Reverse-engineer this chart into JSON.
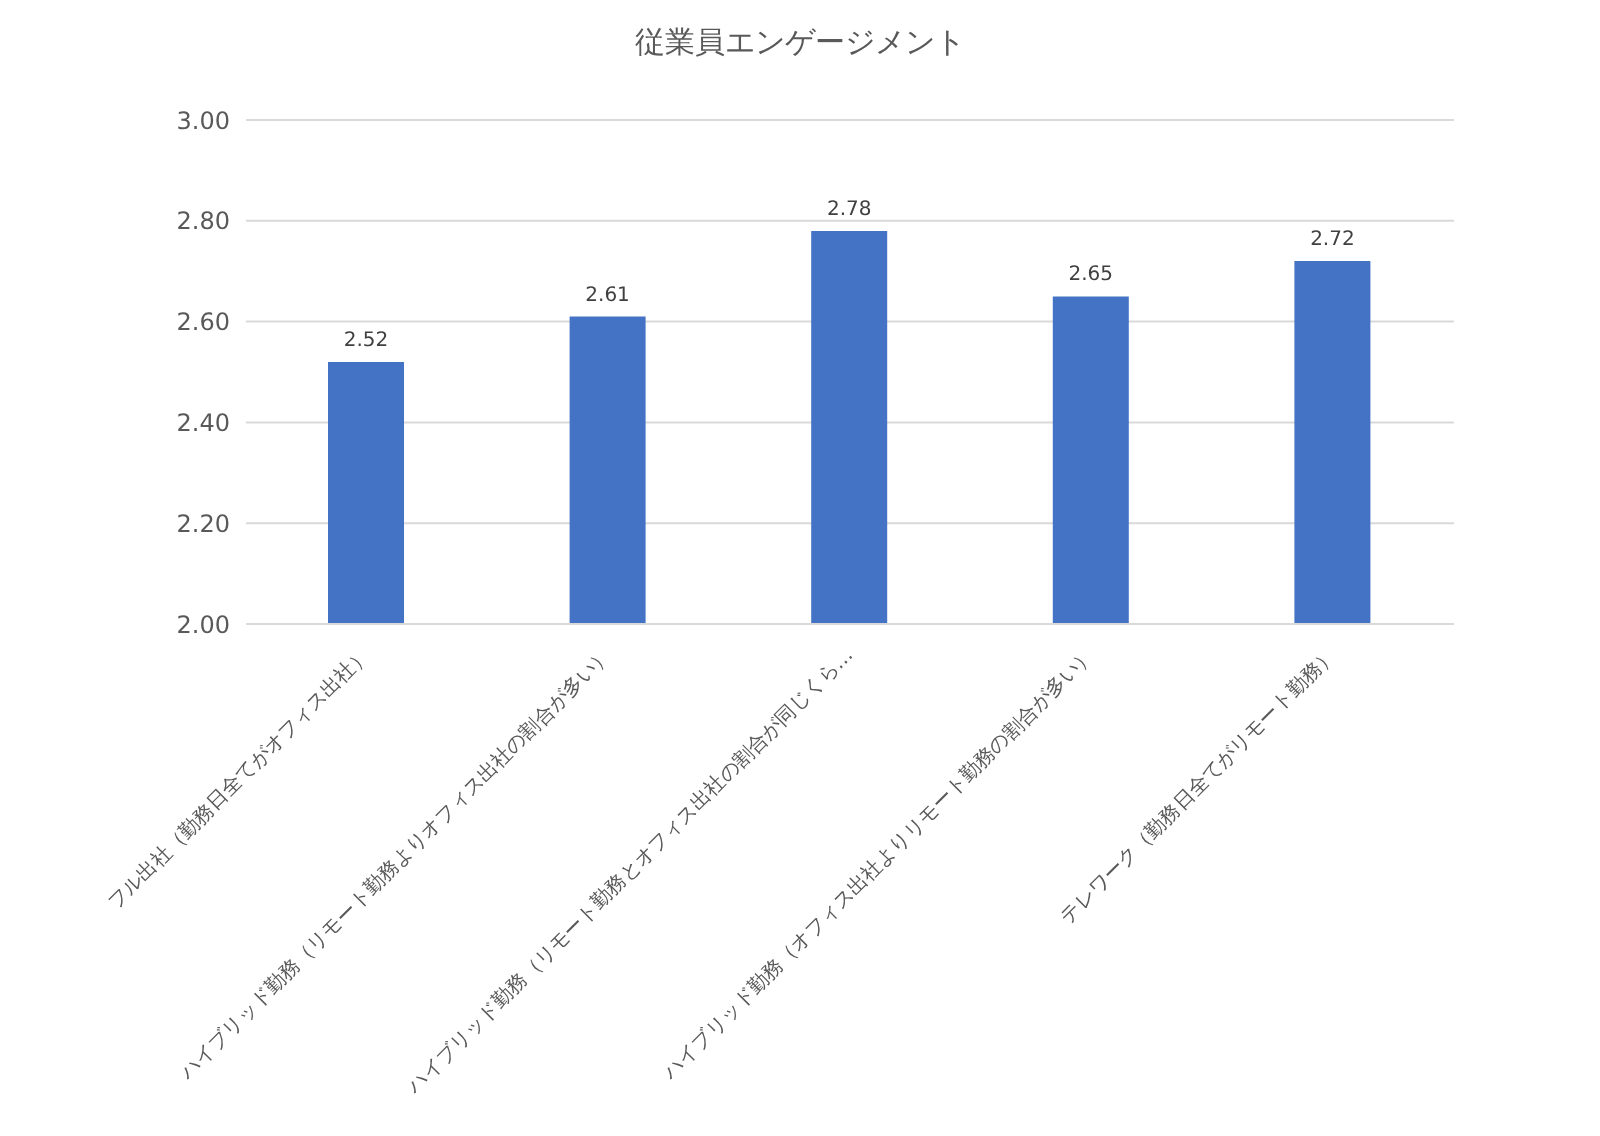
{
  "chart_data": {
    "type": "bar",
    "title": "従業員エンゲージメント",
    "categories": [
      "フル出社（勤務日全てがオフィス出社）",
      "ハイブリッド勤務（リモート勤務よりオフィス出社の割合が多い）",
      "ハイブリッド勤務（リモート勤務とオフィス出社の割合が同じくら…",
      "ハイブリッド勤務（オフィス出社よりリモート勤務の割合が多い）",
      "テレワーク（勤務日全てがリモート勤務）"
    ],
    "values": [
      2.52,
      2.61,
      2.78,
      2.65,
      2.72
    ],
    "color": "#4472c4",
    "ylim": [
      2.0,
      3.0
    ],
    "yticks": [
      {
        "value": 2.0,
        "label": "2.00"
      },
      {
        "value": 2.2,
        "label": "2.20"
      },
      {
        "value": 2.4,
        "label": "2.40"
      },
      {
        "value": 2.6,
        "label": "2.60"
      },
      {
        "value": 2.8,
        "label": "2.80"
      },
      {
        "value": 3.0,
        "label": "3.00"
      }
    ],
    "grid": "y",
    "data_labels": true
  }
}
